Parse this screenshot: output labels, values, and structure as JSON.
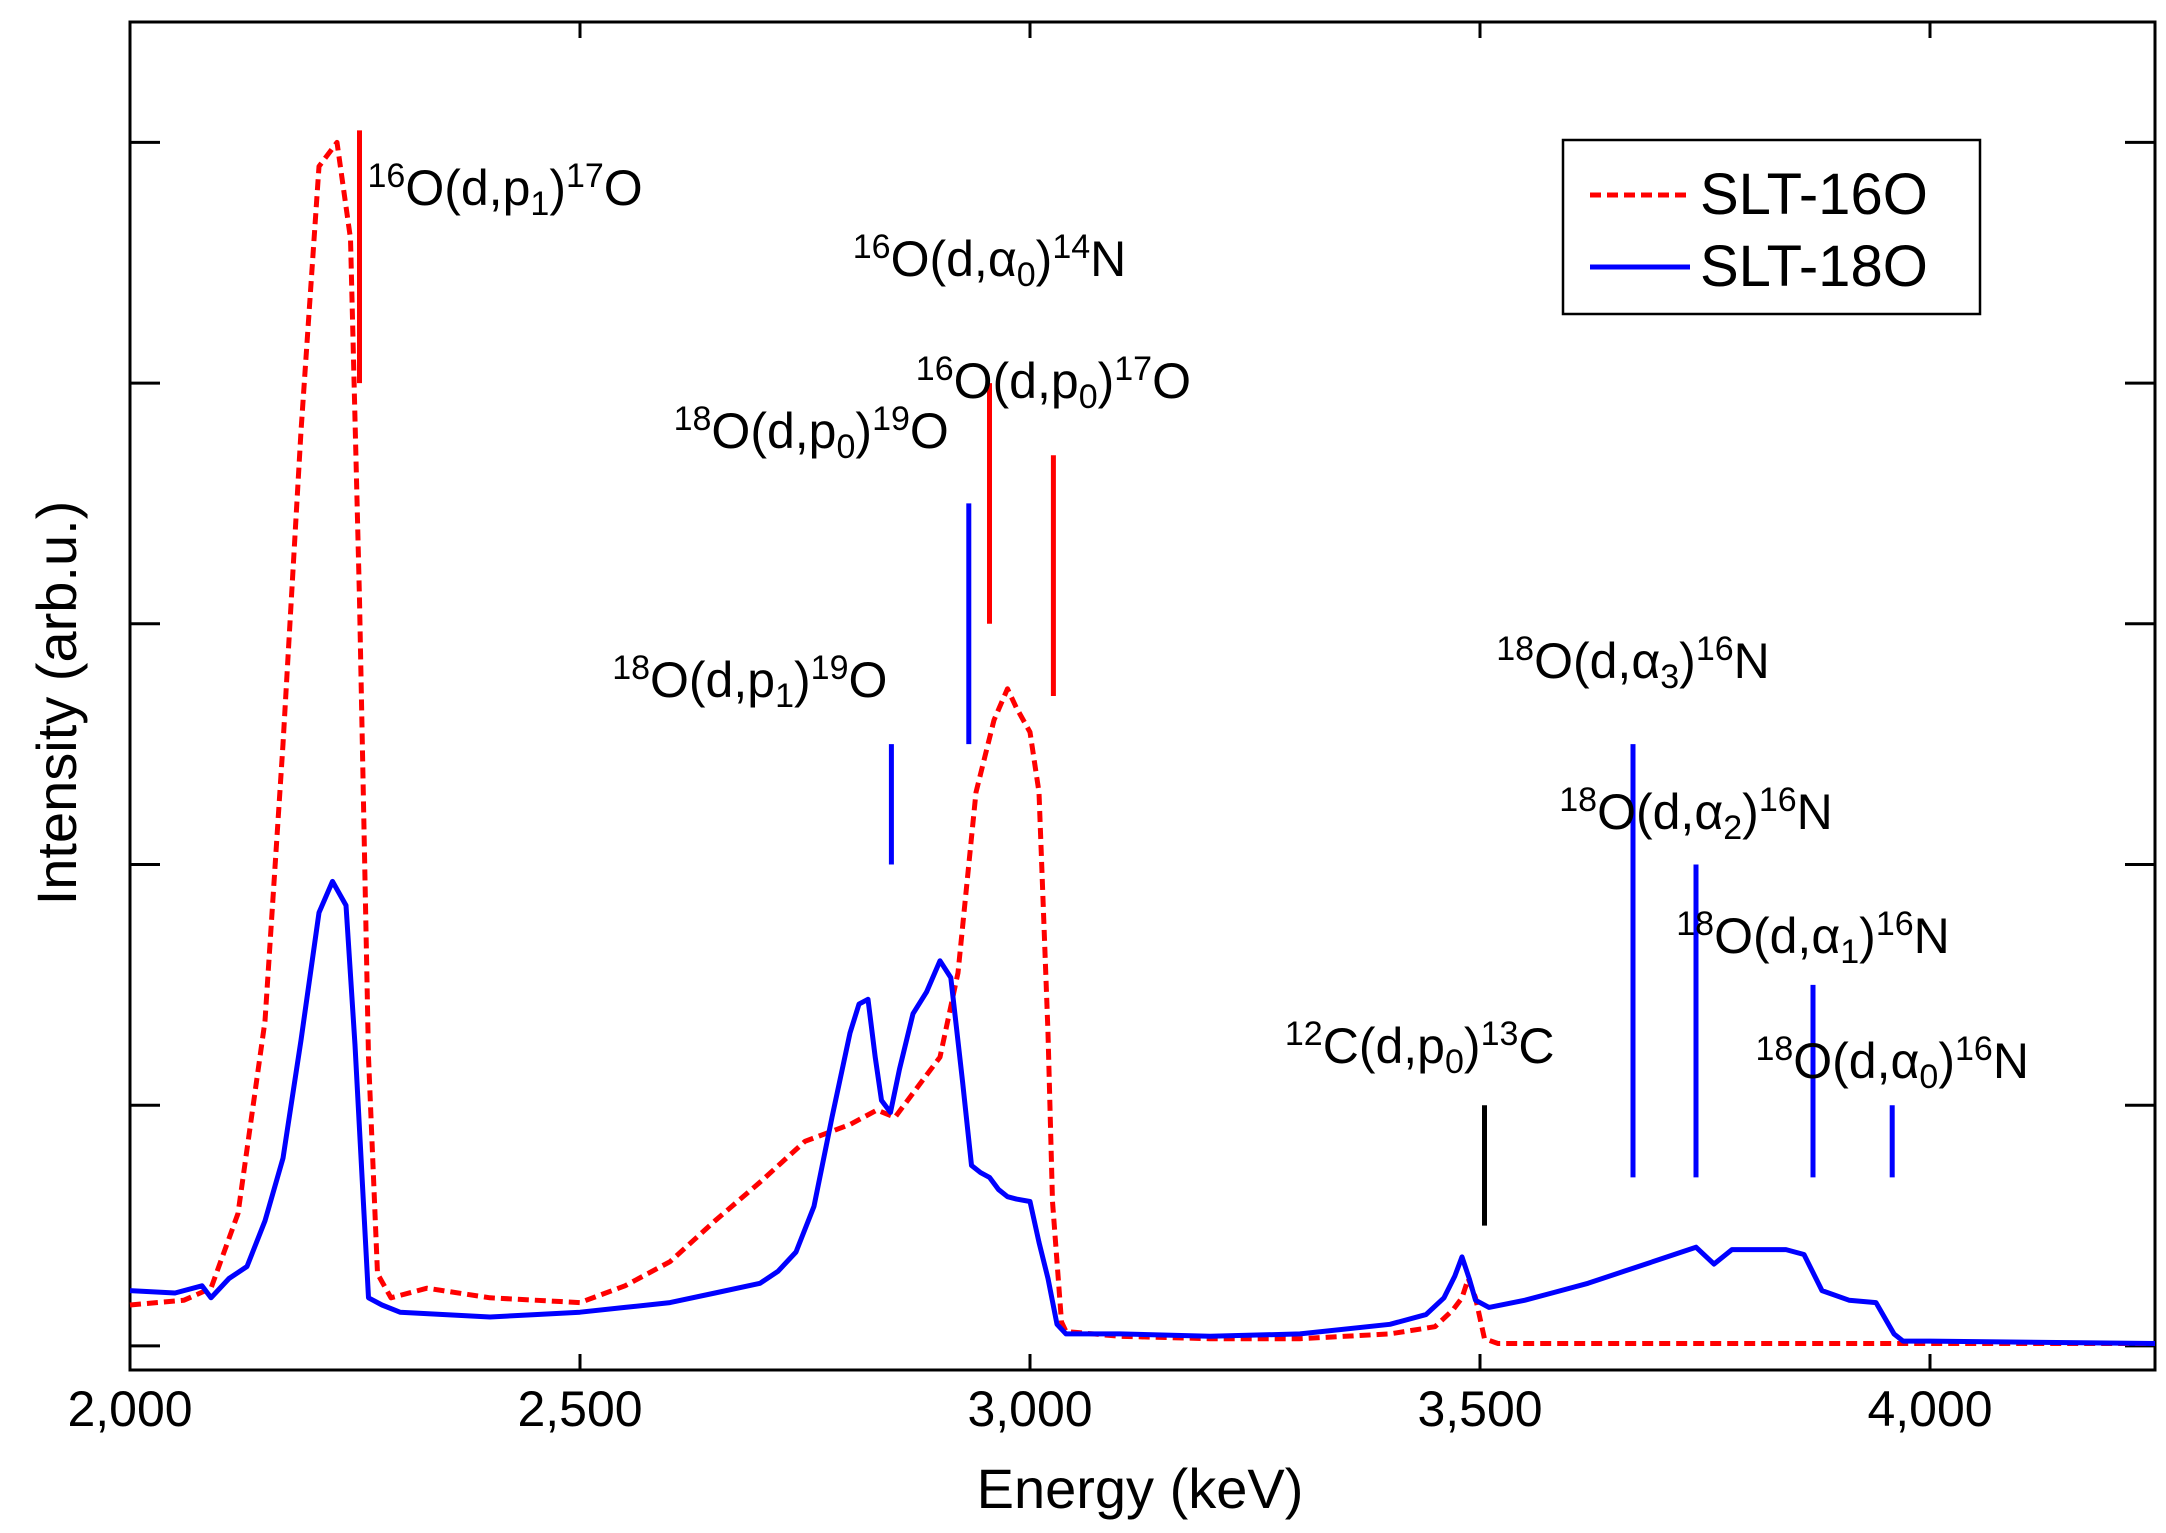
{
  "chart_data": {
    "type": "line",
    "title": "",
    "xlabel": "Energy (keV)",
    "ylabel": "Intensity (arb.u.)",
    "xlim": [
      2000,
      4250
    ],
    "ylim": [
      -0.1,
      5.5
    ],
    "x_ticks": [
      2000,
      2500,
      3000,
      3500,
      4000
    ],
    "x_tick_labels": [
      "2,000",
      "2,500",
      "3,000",
      "3,500",
      "4,000"
    ],
    "y_ticks": [
      0,
      1,
      2,
      3,
      4,
      5
    ],
    "y_tick_labels_shown": false,
    "legend": {
      "position": "top-right"
    },
    "series": [
      {
        "name": "SLT-16O",
        "color": "#ff0000",
        "style": "dashed",
        "points": [
          [
            2000,
            0.17
          ],
          [
            2060,
            0.19
          ],
          [
            2090,
            0.24
          ],
          [
            2120,
            0.55
          ],
          [
            2150,
            1.35
          ],
          [
            2170,
            2.5
          ],
          [
            2190,
            3.8
          ],
          [
            2210,
            4.9
          ],
          [
            2230,
            5.0
          ],
          [
            2245,
            4.6
          ],
          [
            2255,
            3.1
          ],
          [
            2265,
            1.2
          ],
          [
            2275,
            0.3
          ],
          [
            2290,
            0.2
          ],
          [
            2330,
            0.24
          ],
          [
            2400,
            0.2
          ],
          [
            2500,
            0.18
          ],
          [
            2550,
            0.25
          ],
          [
            2600,
            0.35
          ],
          [
            2650,
            0.52
          ],
          [
            2700,
            0.68
          ],
          [
            2750,
            0.85
          ],
          [
            2800,
            0.92
          ],
          [
            2830,
            0.98
          ],
          [
            2850,
            0.95
          ],
          [
            2870,
            1.05
          ],
          [
            2900,
            1.2
          ],
          [
            2920,
            1.55
          ],
          [
            2940,
            2.3
          ],
          [
            2960,
            2.6
          ],
          [
            2975,
            2.73
          ],
          [
            2985,
            2.65
          ],
          [
            3000,
            2.55
          ],
          [
            3010,
            2.3
          ],
          [
            3020,
            1.3
          ],
          [
            3025,
            0.6
          ],
          [
            3035,
            0.1
          ],
          [
            3040,
            0.06
          ],
          [
            3100,
            0.04
          ],
          [
            3200,
            0.03
          ],
          [
            3300,
            0.03
          ],
          [
            3400,
            0.05
          ],
          [
            3450,
            0.08
          ],
          [
            3470,
            0.15
          ],
          [
            3480,
            0.2
          ],
          [
            3487,
            0.28
          ],
          [
            3495,
            0.2
          ],
          [
            3505,
            0.03
          ],
          [
            3520,
            0.01
          ],
          [
            3600,
            0.01
          ],
          [
            3800,
            0.01
          ],
          [
            4000,
            0.01
          ],
          [
            4250,
            0.01
          ]
        ]
      },
      {
        "name": "SLT-18O",
        "color": "#0000ff",
        "style": "solid",
        "points": [
          [
            2000,
            0.23
          ],
          [
            2050,
            0.22
          ],
          [
            2080,
            0.25
          ],
          [
            2090,
            0.2
          ],
          [
            2110,
            0.28
          ],
          [
            2130,
            0.33
          ],
          [
            2150,
            0.52
          ],
          [
            2170,
            0.78
          ],
          [
            2190,
            1.27
          ],
          [
            2210,
            1.8
          ],
          [
            2225,
            1.93
          ],
          [
            2240,
            1.83
          ],
          [
            2250,
            1.25
          ],
          [
            2260,
            0.55
          ],
          [
            2265,
            0.2
          ],
          [
            2280,
            0.17
          ],
          [
            2300,
            0.14
          ],
          [
            2400,
            0.12
          ],
          [
            2450,
            0.13
          ],
          [
            2500,
            0.14
          ],
          [
            2550,
            0.16
          ],
          [
            2600,
            0.18
          ],
          [
            2650,
            0.22
          ],
          [
            2700,
            0.26
          ],
          [
            2720,
            0.31
          ],
          [
            2740,
            0.39
          ],
          [
            2760,
            0.58
          ],
          [
            2780,
            0.95
          ],
          [
            2800,
            1.3
          ],
          [
            2810,
            1.42
          ],
          [
            2820,
            1.44
          ],
          [
            2828,
            1.2
          ],
          [
            2835,
            1.02
          ],
          [
            2845,
            0.97
          ],
          [
            2855,
            1.15
          ],
          [
            2870,
            1.38
          ],
          [
            2885,
            1.47
          ],
          [
            2900,
            1.6
          ],
          [
            2912,
            1.53
          ],
          [
            2925,
            1.1
          ],
          [
            2935,
            0.75
          ],
          [
            2945,
            0.72
          ],
          [
            2955,
            0.7
          ],
          [
            2965,
            0.65
          ],
          [
            2975,
            0.62
          ],
          [
            2985,
            0.61
          ],
          [
            3000,
            0.6
          ],
          [
            3010,
            0.43
          ],
          [
            3020,
            0.28
          ],
          [
            3030,
            0.09
          ],
          [
            3040,
            0.05
          ],
          [
            3100,
            0.05
          ],
          [
            3200,
            0.04
          ],
          [
            3300,
            0.05
          ],
          [
            3400,
            0.09
          ],
          [
            3440,
            0.13
          ],
          [
            3460,
            0.2
          ],
          [
            3472,
            0.29
          ],
          [
            3480,
            0.37
          ],
          [
            3488,
            0.28
          ],
          [
            3495,
            0.19
          ],
          [
            3510,
            0.16
          ],
          [
            3550,
            0.19
          ],
          [
            3580,
            0.22
          ],
          [
            3620,
            0.26
          ],
          [
            3660,
            0.31
          ],
          [
            3700,
            0.36
          ],
          [
            3740,
            0.41
          ],
          [
            3760,
            0.34
          ],
          [
            3780,
            0.4
          ],
          [
            3800,
            0.4
          ],
          [
            3840,
            0.4
          ],
          [
            3860,
            0.38
          ],
          [
            3880,
            0.23
          ],
          [
            3910,
            0.19
          ],
          [
            3940,
            0.18
          ],
          [
            3960,
            0.05
          ],
          [
            3970,
            0.02
          ],
          [
            4000,
            0.02
          ],
          [
            4250,
            0.01
          ]
        ]
      }
    ],
    "annotations": [
      {
        "id": "o16-dp1",
        "base": "O",
        "z": "16",
        "particle": "p",
        "sub": "1",
        "product_mass": "17",
        "product": "O",
        "x": 2255,
        "y_top": 5.05,
        "y_bottom": 4.0,
        "color": "#ff0000"
      },
      {
        "id": "o16-da0",
        "base": "O",
        "z": "16",
        "particle": "α",
        "sub": "0",
        "product_mass": "14",
        "product": "N",
        "x": 2955,
        "y_top": 4.0,
        "y_bottom": 3.0,
        "color": "#ff0000"
      },
      {
        "id": "o16-dp0",
        "base": "O",
        "z": "16",
        "particle": "p",
        "sub": "0",
        "product_mass": "17",
        "product": "O",
        "x": 3026,
        "y_top": 3.7,
        "y_bottom": 2.7,
        "color": "#ff0000"
      },
      {
        "id": "o18-dp0",
        "base": "O",
        "z": "18",
        "particle": "p",
        "sub": "0",
        "product_mass": "19",
        "product": "O",
        "x": 2932,
        "y_top": 3.5,
        "y_bottom": 2.5,
        "color": "#0000ff"
      },
      {
        "id": "o18-dp1",
        "base": "O",
        "z": "18",
        "particle": "p",
        "sub": "1",
        "product_mass": "19",
        "product": "O",
        "x": 2846,
        "y_top": 2.5,
        "y_bottom": 2.0,
        "color": "#0000ff"
      },
      {
        "id": "c12-dp0",
        "base": "C",
        "z": "12",
        "particle": "p",
        "sub": "0",
        "product_mass": "13",
        "product": "C",
        "x": 3505,
        "y_top": 1.0,
        "y_bottom": 0.5,
        "color": "#000000"
      },
      {
        "id": "o18-da3",
        "base": "O",
        "z": "18",
        "particle": "α",
        "sub": "3",
        "product_mass": "16",
        "product": "N",
        "x": 3670,
        "y_top": 2.5,
        "y_bottom": 0.7,
        "color": "#0000ff"
      },
      {
        "id": "o18-da2",
        "base": "O",
        "z": "18",
        "particle": "α",
        "sub": "2",
        "product_mass": "16",
        "product": "N",
        "x": 3740,
        "y_top": 2.0,
        "y_bottom": 0.7,
        "color": "#0000ff"
      },
      {
        "id": "o18-da1",
        "base": "O",
        "z": "18",
        "particle": "α",
        "sub": "1",
        "product_mass": "16",
        "product": "N",
        "x": 3870,
        "y_top": 1.5,
        "y_bottom": 0.7,
        "color": "#0000ff"
      },
      {
        "id": "o18-da0",
        "base": "O",
        "z": "18",
        "particle": "α",
        "sub": "0",
        "product_mass": "16",
        "product": "N",
        "x": 3958,
        "y_top": 1.0,
        "y_bottom": 0.7,
        "color": "#0000ff"
      }
    ]
  }
}
